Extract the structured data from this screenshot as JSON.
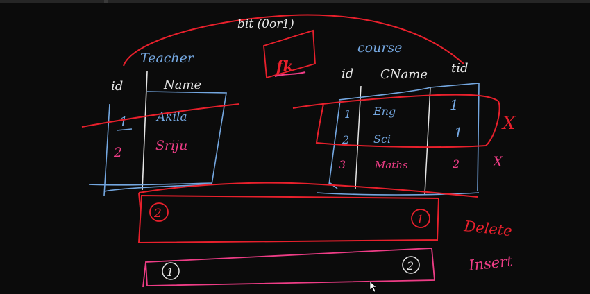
{
  "colors": {
    "background": "#0b0b0b",
    "ink_white": "#e6e6e6",
    "ink_blue": "#74a7e0",
    "ink_red": "#e8202c",
    "ink_pink": "#ee3d86"
  },
  "annotations": {
    "bit_label": "bit (0or1)",
    "fk_label": "fk",
    "delete_label": "Delete",
    "insert_label": "Insert"
  },
  "teacher_table": {
    "title": "Teacher",
    "headers": [
      "id",
      "Name"
    ],
    "rows": [
      {
        "id": "1",
        "name": "Akila"
      },
      {
        "id": "2",
        "name": "Sriju"
      }
    ]
  },
  "course_table": {
    "title": "course",
    "headers": [
      "id",
      "CName",
      "tid"
    ],
    "rows": [
      {
        "id": "1",
        "cname": "Eng",
        "tid": "1"
      },
      {
        "id": "2",
        "cname": "Sci",
        "tid": "1"
      },
      {
        "id": "3",
        "cname": "Maths",
        "tid": "2"
      }
    ]
  },
  "delete_box": {
    "left_marker": "2",
    "right_marker": "1"
  },
  "insert_box": {
    "left_marker": "1",
    "right_marker": "2"
  },
  "row_marks": [
    "X",
    "X"
  ]
}
